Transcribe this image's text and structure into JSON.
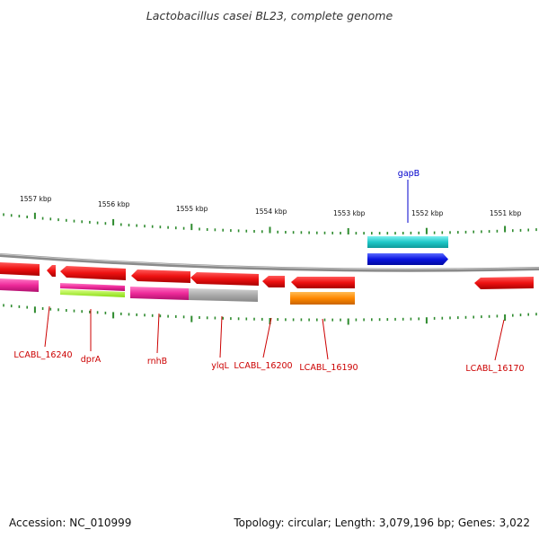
{
  "title": "Lactobacillus casei BL23, complete genome",
  "footer": {
    "accession": "Accession: NC_010999",
    "summary": "Topology: circular; Length: 3,079,196 bp; Genes: 3,022"
  },
  "scale": {
    "tick_labels": [
      "1557 kbp",
      "1556 kbp",
      "1555 kbp",
      "1554 kbp",
      "1553 kbp",
      "1552 kbp",
      "1551 kbp"
    ]
  },
  "colors": {
    "backbone": "#8a8a8a",
    "tick": "#2e8b2e",
    "gene_label": "#cc0000",
    "blue_label": "#0000cc",
    "red_gene": "#ee1111",
    "magenta_gene": "#ee2a9a",
    "lime_gene": "#aaff22",
    "gray_gene": "#aaaaaa",
    "orange_gene": "#ff8800",
    "cyan_gene": "#1ec8c8",
    "blue_gene": "#0a14e0"
  },
  "genes": {
    "labels": [
      {
        "text": "LCABL_16240",
        "color": "red"
      },
      {
        "text": "dprA",
        "color": "red"
      },
      {
        "text": "rnhB",
        "color": "red"
      },
      {
        "text": "ylqL",
        "color": "red"
      },
      {
        "text": "LCABL_16200",
        "color": "red"
      },
      {
        "text": "LCABL_16190",
        "color": "red"
      },
      {
        "text": "LCABL_16170",
        "color": "red"
      },
      {
        "text": "gapB",
        "color": "blue"
      }
    ]
  }
}
